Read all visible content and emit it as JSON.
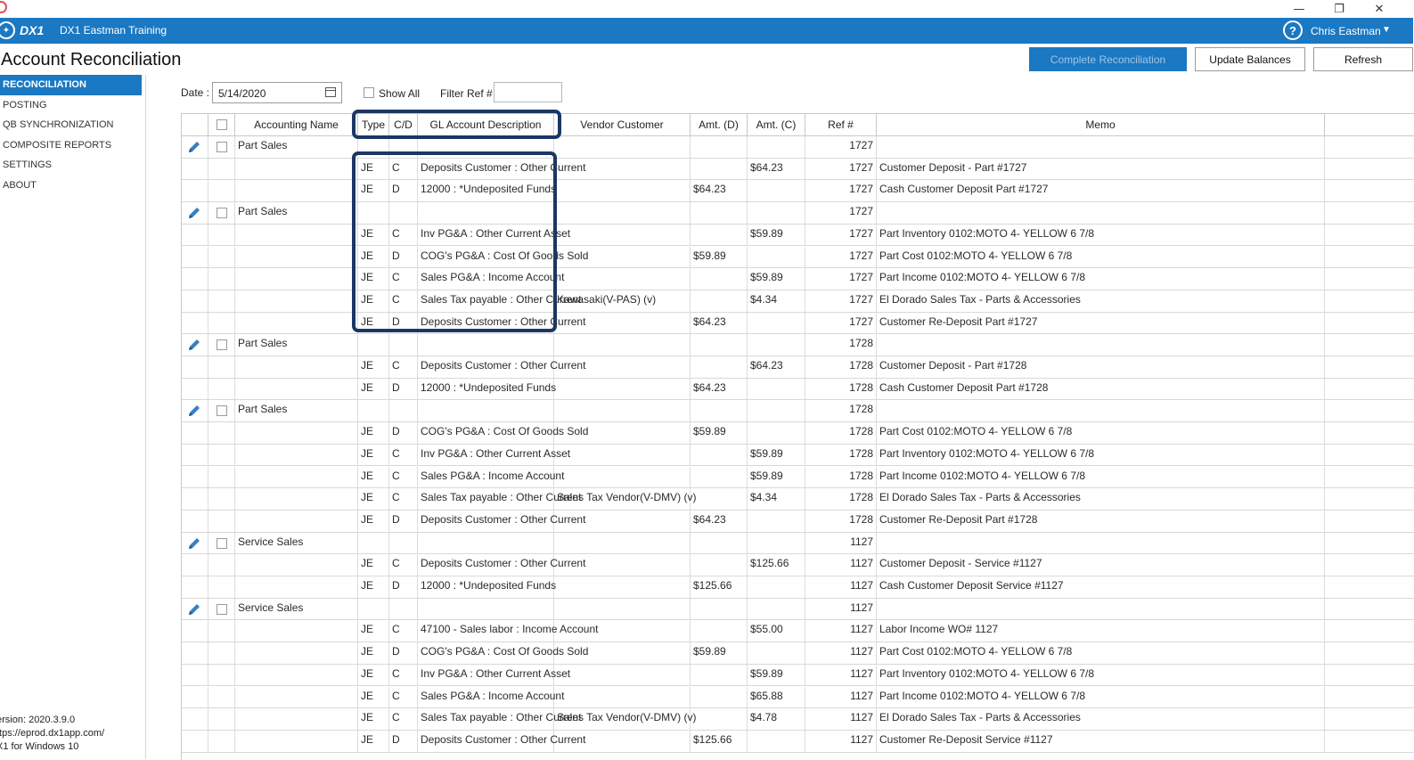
{
  "window": {
    "minimize": "—",
    "restore": "❐",
    "close": "✕"
  },
  "app": {
    "logo": "DX1",
    "org": "DX1 Eastman Training",
    "help": "?",
    "user": "Chris Eastman",
    "caret": "▼"
  },
  "page": {
    "title": "Account Reconciliation"
  },
  "toolbar": {
    "complete": "Complete Reconciliation",
    "update": "Update Balances",
    "refresh": "Refresh"
  },
  "sidebar": {
    "items": [
      "RECONCILIATION",
      "POSTING",
      "QB SYNCHRONIZATION",
      "COMPOSITE REPORTS",
      "SETTINGS",
      "ABOUT"
    ]
  },
  "footer": {
    "version": "ersion: 2020.3.9.0",
    "url": "ttps://eprod.dx1app.com/",
    "platform": "X1 for Windows 10"
  },
  "filters": {
    "date_label": "Date :",
    "date_value": "5/14/2020",
    "show_all": "Show All",
    "filter_ref": "Filter Ref #"
  },
  "columns": [
    "",
    "Accounting Name",
    "Type",
    "C/D",
    "GL Account Description",
    "Vendor Customer",
    "Amt. (D)",
    "Amt. (C)",
    "Ref #",
    "Memo"
  ],
  "accent": "#1b78c2",
  "highlight": "#1c3665",
  "rows": [
    {
      "group": true,
      "name": "Part Sales",
      "type": "",
      "cd": "",
      "gl": "",
      "vendor": "",
      "amt_d": "",
      "amt_c": "",
      "ref": "1727",
      "memo": ""
    },
    {
      "type": "JE",
      "cd": "C",
      "gl": "Deposits Customer : Other Current",
      "vendor": "",
      "amt_d": "",
      "amt_c": "$64.23",
      "ref": "1727",
      "memo": "Customer Deposit - Part #1727"
    },
    {
      "type": "JE",
      "cd": "D",
      "gl": "12000 : *Undeposited Funds",
      "vendor": "",
      "amt_d": "$64.23",
      "amt_c": "",
      "ref": "1727",
      "memo": "Cash Customer Deposit Part #1727"
    },
    {
      "group": true,
      "name": "Part Sales",
      "type": "",
      "cd": "",
      "gl": "",
      "vendor": "",
      "amt_d": "",
      "amt_c": "",
      "ref": "1727",
      "memo": ""
    },
    {
      "type": "JE",
      "cd": "C",
      "gl": "Inv PG&A : Other Current Asset",
      "vendor": "",
      "amt_d": "",
      "amt_c": "$59.89",
      "ref": "1727",
      "memo": "Part Inventory 0102:MOTO 4- YELLOW 6 7/8"
    },
    {
      "type": "JE",
      "cd": "D",
      "gl": "COG's PG&A : Cost Of Goods Sold",
      "vendor": "",
      "amt_d": "$59.89",
      "amt_c": "",
      "ref": "1727",
      "memo": "Part Cost 0102:MOTO 4- YELLOW 6 7/8"
    },
    {
      "type": "JE",
      "cd": "C",
      "gl": "Sales PG&A : Income Account",
      "vendor": "",
      "amt_d": "",
      "amt_c": "$59.89",
      "ref": "1727",
      "memo": "Part Income 0102:MOTO 4- YELLOW 6 7/8"
    },
    {
      "type": "JE",
      "cd": "C",
      "gl": "Sales Tax payable : Other Current",
      "vendor": "Kawasaki(V-PAS) (v)",
      "amt_d": "",
      "amt_c": "$4.34",
      "ref": "1727",
      "memo": "El Dorado Sales Tax - Parts & Accessories"
    },
    {
      "type": "JE",
      "cd": "D",
      "gl": "Deposits Customer : Other Current",
      "vendor": "",
      "amt_d": "$64.23",
      "amt_c": "",
      "ref": "1727",
      "memo": "Customer Re-Deposit Part #1727"
    },
    {
      "group": true,
      "name": "Part Sales",
      "type": "",
      "cd": "",
      "gl": "",
      "vendor": "",
      "amt_d": "",
      "amt_c": "",
      "ref": "1728",
      "memo": ""
    },
    {
      "type": "JE",
      "cd": "C",
      "gl": "Deposits Customer : Other Current",
      "vendor": "",
      "amt_d": "",
      "amt_c": "$64.23",
      "ref": "1728",
      "memo": "Customer Deposit - Part #1728"
    },
    {
      "type": "JE",
      "cd": "D",
      "gl": "12000 : *Undeposited Funds",
      "vendor": "",
      "amt_d": "$64.23",
      "amt_c": "",
      "ref": "1728",
      "memo": "Cash Customer Deposit Part #1728"
    },
    {
      "group": true,
      "name": "Part Sales",
      "type": "",
      "cd": "",
      "gl": "",
      "vendor": "",
      "amt_d": "",
      "amt_c": "",
      "ref": "1728",
      "memo": ""
    },
    {
      "type": "JE",
      "cd": "D",
      "gl": "COG's PG&A : Cost Of Goods Sold",
      "vendor": "",
      "amt_d": "$59.89",
      "amt_c": "",
      "ref": "1728",
      "memo": "Part Cost 0102:MOTO 4- YELLOW 6 7/8"
    },
    {
      "type": "JE",
      "cd": "C",
      "gl": "Inv PG&A : Other Current Asset",
      "vendor": "",
      "amt_d": "",
      "amt_c": "$59.89",
      "ref": "1728",
      "memo": "Part Inventory 0102:MOTO 4- YELLOW 6 7/8"
    },
    {
      "type": "JE",
      "cd": "C",
      "gl": "Sales PG&A : Income Account",
      "vendor": "",
      "amt_d": "",
      "amt_c": "$59.89",
      "ref": "1728",
      "memo": "Part Income 0102:MOTO 4- YELLOW 6 7/8"
    },
    {
      "type": "JE",
      "cd": "C",
      "gl": "Sales Tax payable : Other Current",
      "vendor": "Sales Tax Vendor(V-DMV) (v)",
      "amt_d": "",
      "amt_c": "$4.34",
      "ref": "1728",
      "memo": "El Dorado Sales Tax - Parts & Accessories"
    },
    {
      "type": "JE",
      "cd": "D",
      "gl": "Deposits Customer : Other Current",
      "vendor": "",
      "amt_d": "$64.23",
      "amt_c": "",
      "ref": "1728",
      "memo": "Customer Re-Deposit Part #1728"
    },
    {
      "group": true,
      "name": "Service Sales",
      "type": "",
      "cd": "",
      "gl": "",
      "vendor": "",
      "amt_d": "",
      "amt_c": "",
      "ref": "1127",
      "memo": ""
    },
    {
      "type": "JE",
      "cd": "C",
      "gl": "Deposits Customer : Other Current",
      "vendor": "",
      "amt_d": "",
      "amt_c": "$125.66",
      "ref": "1127",
      "memo": "Customer Deposit - Service #1127"
    },
    {
      "type": "JE",
      "cd": "D",
      "gl": "12000 : *Undeposited Funds",
      "vendor": "",
      "amt_d": "$125.66",
      "amt_c": "",
      "ref": "1127",
      "memo": "Cash Customer Deposit Service #1127"
    },
    {
      "group": true,
      "name": "Service Sales",
      "type": "",
      "cd": "",
      "gl": "",
      "vendor": "",
      "amt_d": "",
      "amt_c": "",
      "ref": "1127",
      "memo": ""
    },
    {
      "type": "JE",
      "cd": "C",
      "gl": "47100 - Sales labor : Income Account",
      "vendor": "",
      "amt_d": "",
      "amt_c": "$55.00",
      "ref": "1127",
      "memo": "Labor Income  WO# 1127"
    },
    {
      "type": "JE",
      "cd": "D",
      "gl": "COG's PG&A : Cost Of Goods Sold",
      "vendor": "",
      "amt_d": "$59.89",
      "amt_c": "",
      "ref": "1127",
      "memo": "Part Cost 0102:MOTO 4- YELLOW 6 7/8"
    },
    {
      "type": "JE",
      "cd": "C",
      "gl": "Inv PG&A : Other Current Asset",
      "vendor": "",
      "amt_d": "",
      "amt_c": "$59.89",
      "ref": "1127",
      "memo": "Part Inventory 0102:MOTO 4- YELLOW 6 7/8"
    },
    {
      "type": "JE",
      "cd": "C",
      "gl": "Sales PG&A : Income Account",
      "vendor": "",
      "amt_d": "",
      "amt_c": "$65.88",
      "ref": "1127",
      "memo": "Part Income 0102:MOTO 4- YELLOW 6 7/8"
    },
    {
      "type": "JE",
      "cd": "C",
      "gl": "Sales Tax payable : Other Current",
      "vendor": "Sales Tax Vendor(V-DMV) (v)",
      "amt_d": "",
      "amt_c": "$4.78",
      "ref": "1127",
      "memo": "El Dorado Sales Tax - Parts & Accessories"
    },
    {
      "type": "JE",
      "cd": "D",
      "gl": "Deposits Customer : Other Current",
      "vendor": "",
      "amt_d": "$125.66",
      "amt_c": "",
      "ref": "1127",
      "memo": "Customer Re-Deposit Service #1127"
    }
  ]
}
